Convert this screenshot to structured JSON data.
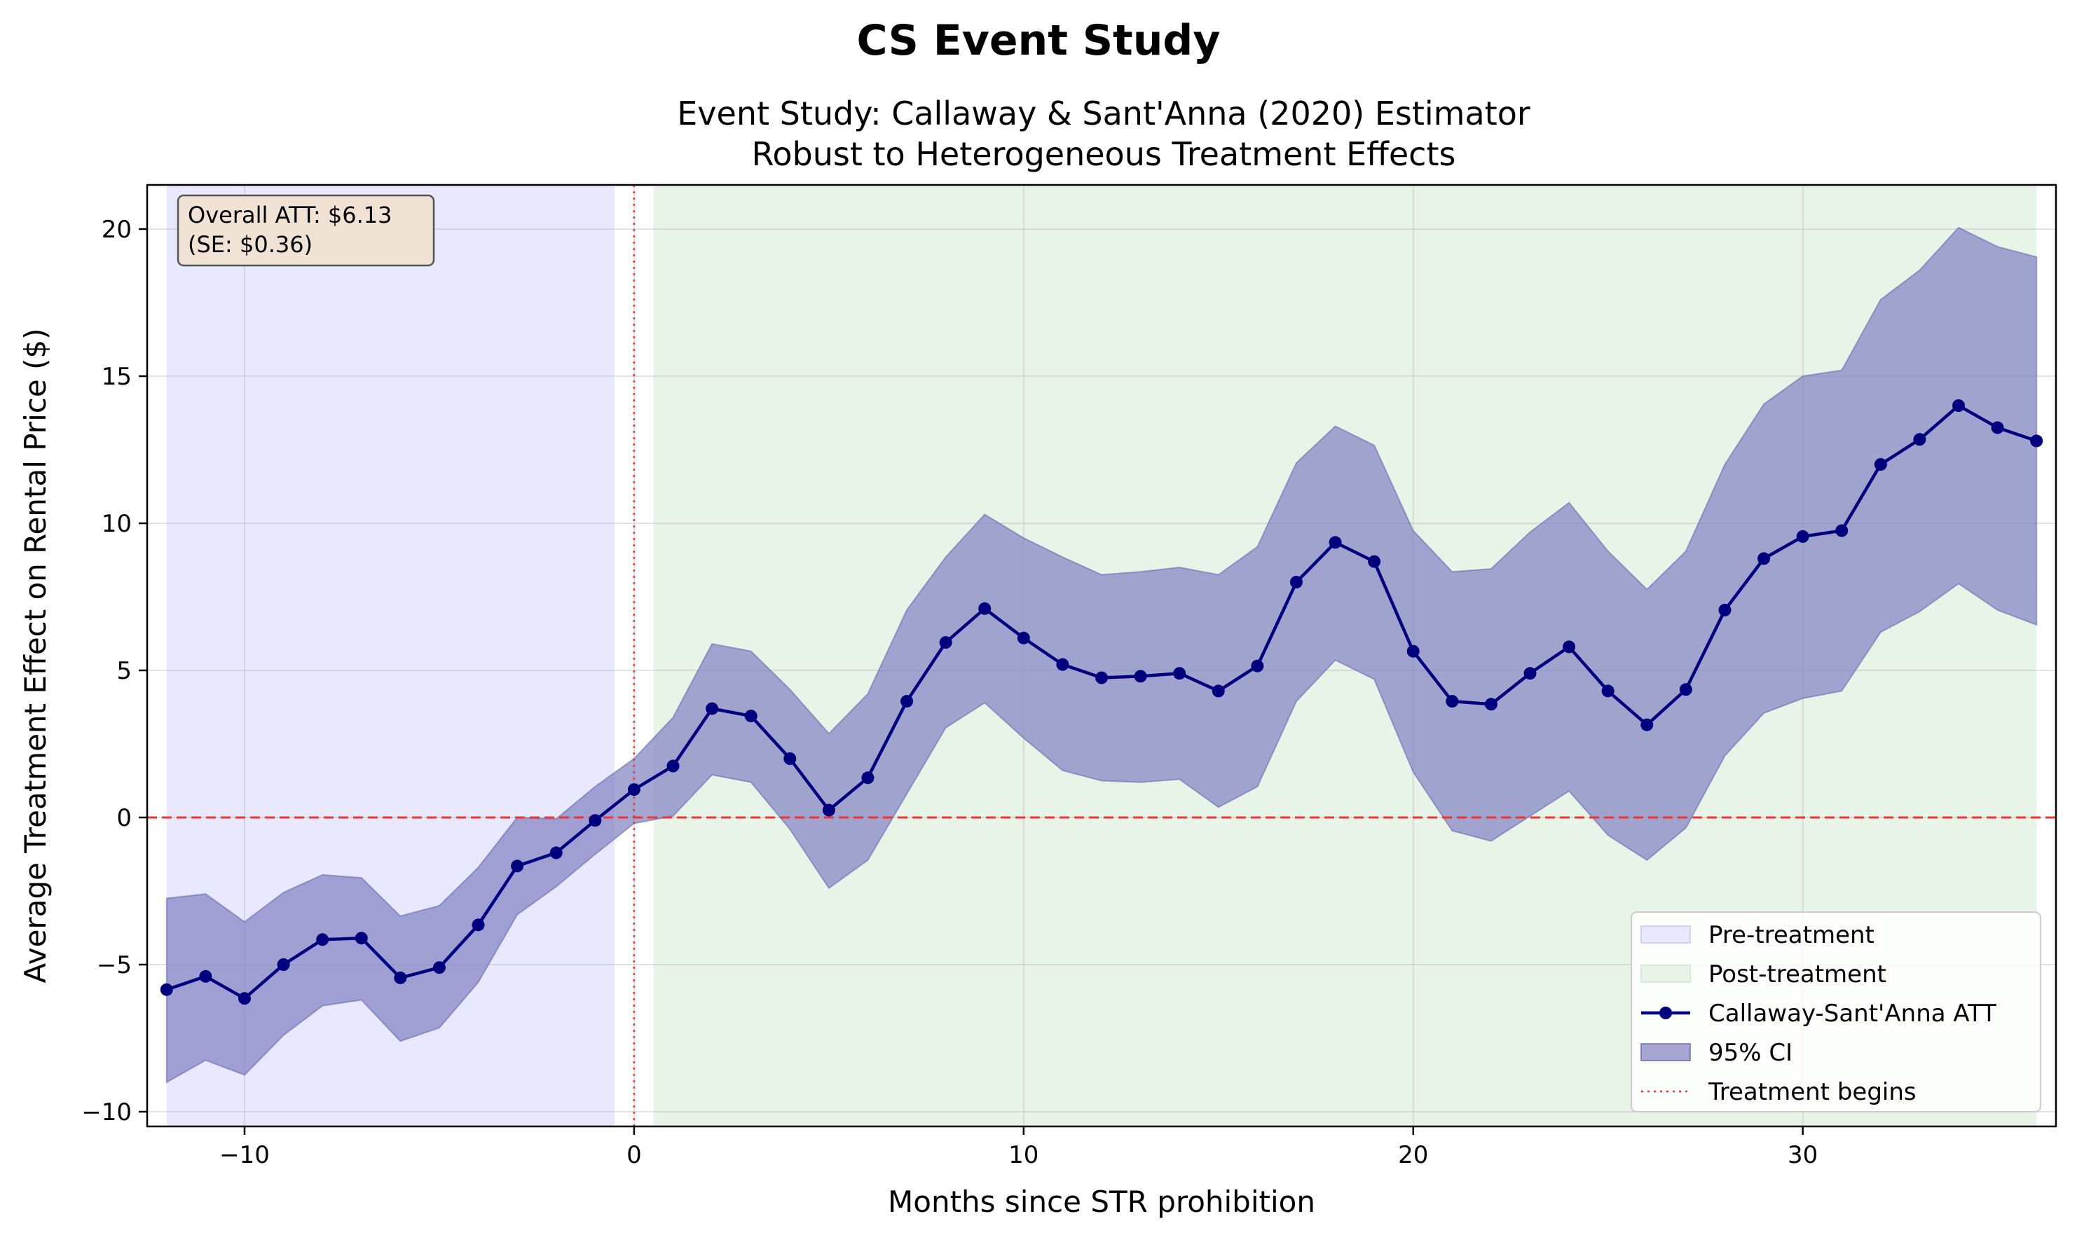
{
  "chart_data": {
    "type": "line",
    "suptitle": "CS Event Study",
    "title_line1": "Event Study: Callaway & Sant'Anna (2020) Estimator",
    "title_line2": "Robust to Heterogeneous Treatment Effects",
    "xlabel": "Months since STR prohibition",
    "ylabel": "Average Treatment Effect on Rental Price ($)",
    "xlim": [
      -12.5,
      36.5
    ],
    "ylim": [
      -10.5,
      21.5
    ],
    "xticks": [
      -10,
      0,
      10,
      20,
      30
    ],
    "xtick_labels": [
      "−10",
      "0",
      "10",
      "20",
      "30"
    ],
    "yticks": [
      -10,
      -5,
      0,
      5,
      10,
      15,
      20
    ],
    "ytick_labels": [
      "−10",
      "−5",
      "0",
      "5",
      "10",
      "15",
      "20"
    ],
    "grid": true,
    "legend_position": "lower-right",
    "regions": {
      "pre_treatment": {
        "label": "Pre-treatment",
        "x_range": [
          -12,
          -0.5
        ],
        "color": "#e8e8ff"
      },
      "post_treatment": {
        "label": "Post-treatment",
        "x_range": [
          0.5,
          36
        ],
        "color": "#e9f4e9"
      }
    },
    "reference_lines": {
      "zero_line": {
        "y": 0,
        "color": "#ee3333",
        "style": "dashed"
      },
      "treatment_line": {
        "x": 0,
        "label": "Treatment begins",
        "color": "#ee3333",
        "style": "dotted"
      }
    },
    "series": [
      {
        "name": "Callaway-Sant'Anna ATT",
        "color": "#00007f",
        "x": [
          -12,
          -11,
          -10,
          -9,
          -8,
          -7,
          -6,
          -5,
          -4,
          -3,
          -2,
          -1,
          0,
          1,
          2,
          3,
          4,
          5,
          6,
          7,
          8,
          9,
          10,
          11,
          12,
          13,
          14,
          15,
          16,
          17,
          18,
          19,
          20,
          21,
          22,
          23,
          24,
          25,
          26,
          27,
          28,
          29,
          30,
          31,
          32,
          33,
          34,
          35,
          36
        ],
        "y": [
          -5.85,
          -5.4,
          -6.15,
          -5.0,
          -4.15,
          -4.1,
          -5.45,
          -5.1,
          -3.65,
          -1.65,
          -1.2,
          -0.1,
          0.95,
          1.75,
          3.7,
          3.45,
          2.0,
          0.25,
          1.35,
          3.95,
          5.95,
          7.1,
          6.1,
          5.2,
          4.75,
          4.8,
          4.9,
          4.3,
          5.15,
          8.0,
          9.35,
          8.7,
          5.65,
          3.95,
          3.85,
          4.9,
          5.8,
          4.3,
          3.15,
          4.35,
          7.05,
          8.8,
          9.55,
          9.75,
          12.0,
          12.85,
          14.0,
          13.25,
          12.8
        ]
      }
    ],
    "ci": {
      "name": "95% CI",
      "color": "#8080c0",
      "lower": [
        -9.0,
        -8.25,
        -8.75,
        -7.4,
        -6.4,
        -6.2,
        -7.6,
        -7.15,
        -5.6,
        -3.3,
        -2.35,
        -1.25,
        -0.2,
        0.05,
        1.45,
        1.2,
        -0.4,
        -2.4,
        -1.45,
        0.8,
        3.05,
        3.9,
        2.7,
        1.6,
        1.25,
        1.2,
        1.3,
        0.35,
        1.05,
        3.95,
        5.35,
        4.7,
        1.55,
        -0.45,
        -0.8,
        0.05,
        0.9,
        -0.6,
        -1.45,
        -0.35,
        2.1,
        3.55,
        4.05,
        4.3,
        6.3,
        7.0,
        7.95,
        7.05,
        6.55
      ],
      "upper": [
        -2.75,
        -2.6,
        -3.55,
        -2.55,
        -1.95,
        -2.05,
        -3.35,
        -3.0,
        -1.7,
        0.0,
        -0.05,
        1.05,
        2.0,
        3.4,
        5.9,
        5.65,
        4.35,
        2.85,
        4.2,
        7.05,
        8.85,
        10.3,
        9.5,
        8.85,
        8.25,
        8.35,
        8.5,
        8.25,
        9.2,
        12.05,
        13.3,
        12.65,
        9.75,
        8.35,
        8.45,
        9.7,
        10.7,
        9.05,
        7.75,
        9.05,
        12.0,
        14.05,
        15.0,
        15.2,
        17.6,
        18.6,
        20.05,
        19.4,
        19.05
      ]
    },
    "annotation": {
      "line1": "Overall ATT: $6.13",
      "line2": "(SE: $0.36)",
      "box_color": "#f0e2d4"
    },
    "legend": [
      {
        "key": "pre",
        "label": "Pre-treatment"
      },
      {
        "key": "post",
        "label": "Post-treatment"
      },
      {
        "key": "att",
        "label": "Callaway-Sant'Anna ATT"
      },
      {
        "key": "ci",
        "label": "95% CI"
      },
      {
        "key": "treat",
        "label": "Treatment begins"
      }
    ]
  }
}
